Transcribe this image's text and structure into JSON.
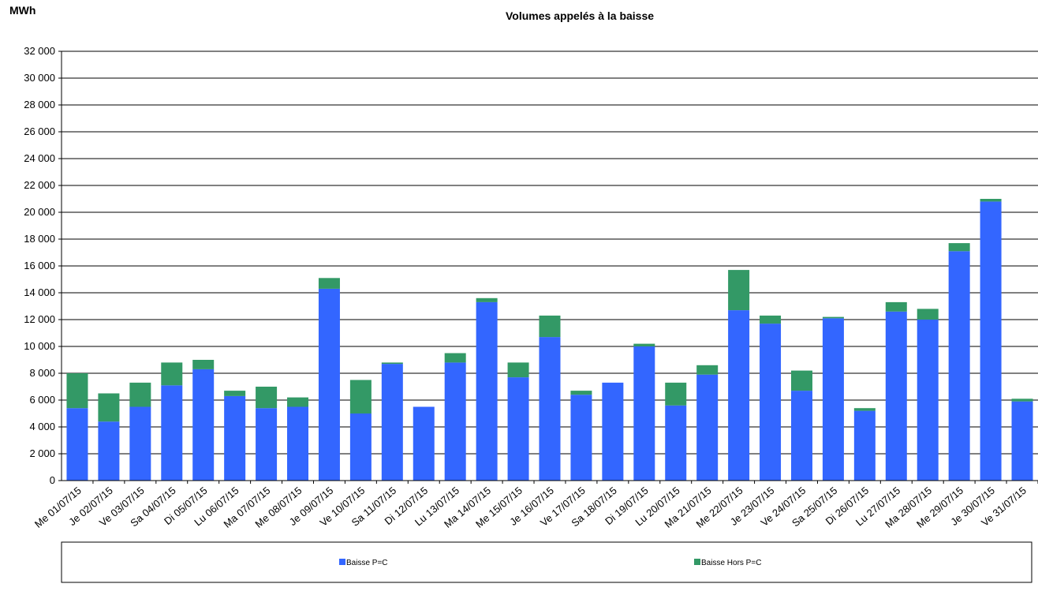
{
  "chart_data": {
    "type": "bar",
    "stacked": true,
    "title": "Volumes appelés à la baisse",
    "y_label": "MWh",
    "categories": [
      "Me 01/07/15",
      "Je 02/07/15",
      "Ve 03/07/15",
      "Sa 04/07/15",
      "Di 05/07/15",
      "Lu 06/07/15",
      "Ma 07/07/15",
      "Me 08/07/15",
      "Je 09/07/15",
      "Ve 10/07/15",
      "Sa 11/07/15",
      "Di 12/07/15",
      "Lu 13/07/15",
      "Ma 14/07/15",
      "Me 15/07/15",
      "Je 16/07/15",
      "Ve 17/07/15",
      "Sa 18/07/15",
      "Di 19/07/15",
      "Lu 20/07/15",
      "Ma 21/07/15",
      "Me 22/07/15",
      "Je 23/07/15",
      "Ve 24/07/15",
      "Sa 25/07/15",
      "Di 26/07/15",
      "Lu 27/07/15",
      "Ma 28/07/15",
      "Me 29/07/15",
      "Je 30/07/15",
      "Ve 31/07/15"
    ],
    "series": [
      {
        "name": "Baisse P=C",
        "color": "#3366ff",
        "values": [
          5400,
          4400,
          5500,
          7100,
          8300,
          6300,
          5400,
          5500,
          14300,
          5000,
          8700,
          5500,
          8800,
          13300,
          7700,
          10700,
          6400,
          7300,
          10000,
          5600,
          7900,
          12700,
          11700,
          6700,
          12100,
          5200,
          12600,
          12000,
          17100,
          20800,
          5900
        ]
      },
      {
        "name": "Baisse Hors P=C",
        "color": "#339966",
        "values": [
          2600,
          2100,
          1800,
          1700,
          700,
          400,
          1600,
          700,
          800,
          2500,
          100,
          0,
          700,
          300,
          1100,
          1600,
          300,
          0,
          200,
          1700,
          700,
          3000,
          600,
          1500,
          100,
          200,
          700,
          800,
          600,
          200,
          200
        ]
      }
    ],
    "ylim": [
      0,
      32000
    ],
    "yticks": [
      0,
      {
        "value": 2000,
        "label": "2 000"
      },
      {
        "value": 4000,
        "label": "4 000"
      },
      {
        "value": 6000,
        "label": "6 000"
      },
      {
        "value": 8000,
        "label": "8 000"
      },
      {
        "value": 10000,
        "label": "10 000"
      },
      {
        "value": 12000,
        "label": "12 000"
      },
      {
        "value": 14000,
        "label": "14 000"
      },
      {
        "value": 16000,
        "label": "16 000"
      },
      {
        "value": 18000,
        "label": "18 000"
      },
      {
        "value": 20000,
        "label": "20 000"
      },
      {
        "value": 22000,
        "label": "22 000"
      },
      {
        "value": 24000,
        "label": "24 000"
      },
      {
        "value": 26000,
        "label": "26 000"
      },
      {
        "value": 28000,
        "label": "28 000"
      },
      {
        "value": 30000,
        "label": "30 000"
      },
      {
        "value": 32000,
        "label": "32 000"
      }
    ],
    "grid": true,
    "legend": "bottom"
  }
}
